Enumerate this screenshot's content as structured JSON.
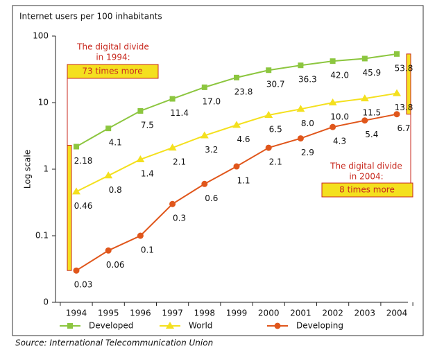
{
  "chart_data": {
    "type": "line",
    "title": "Internet users per 100 inhabitants",
    "ylabel": "Log scale",
    "source": "Source: International Telecommunication Union",
    "categories": [
      "1994",
      "1995",
      "1996",
      "1997",
      "1998",
      "1999",
      "2000",
      "2001",
      "2002",
      "2003",
      "2004"
    ],
    "log_scale": true,
    "ylim": [
      0.01,
      100
    ],
    "yticks": [
      {
        "value": 0.01,
        "label": "0"
      },
      0.1,
      1,
      10,
      100
    ],
    "series": [
      {
        "name": "Developed",
        "color": "#8cc63f",
        "marker": "square",
        "values": [
          2.18,
          4.1,
          7.5,
          11.4,
          17.0,
          23.8,
          30.7,
          36.3,
          42.0,
          45.9,
          53.8
        ],
        "value_labels": [
          "2.18",
          "4.1",
          "7.5",
          "11.4",
          "17.0",
          "23.8",
          "30.7",
          "36.3",
          "42.0",
          "45.9",
          "53.8"
        ]
      },
      {
        "name": "World",
        "color": "#f4e01e",
        "marker": "triangle",
        "values": [
          0.46,
          0.8,
          1.4,
          2.1,
          3.2,
          4.6,
          6.5,
          8.0,
          10.0,
          11.5,
          13.8
        ],
        "value_labels": [
          "0.46",
          "0.8",
          "1.4",
          "2.1",
          "3.2",
          "4.6",
          "6.5",
          "8.0",
          "10.0",
          "11.5",
          "13.8"
        ]
      },
      {
        "name": "Developing",
        "color": "#e0561b",
        "marker": "circle",
        "values": [
          0.03,
          0.06,
          0.1,
          0.3,
          0.6,
          1.1,
          2.1,
          2.9,
          4.3,
          5.4,
          6.7
        ],
        "value_labels": [
          "0.03",
          "0.06",
          "0.1",
          "0.3",
          "0.6",
          "1.1",
          "2.1",
          "2.9",
          "4.3",
          "5.4",
          "6.7"
        ]
      }
    ],
    "annotations": [
      {
        "text": [
          "The digital divide",
          "in 1994:"
        ],
        "highlight": "73 times more"
      },
      {
        "text": [
          "The digital divide",
          "in 2004:"
        ],
        "highlight": "8 times more"
      }
    ]
  }
}
